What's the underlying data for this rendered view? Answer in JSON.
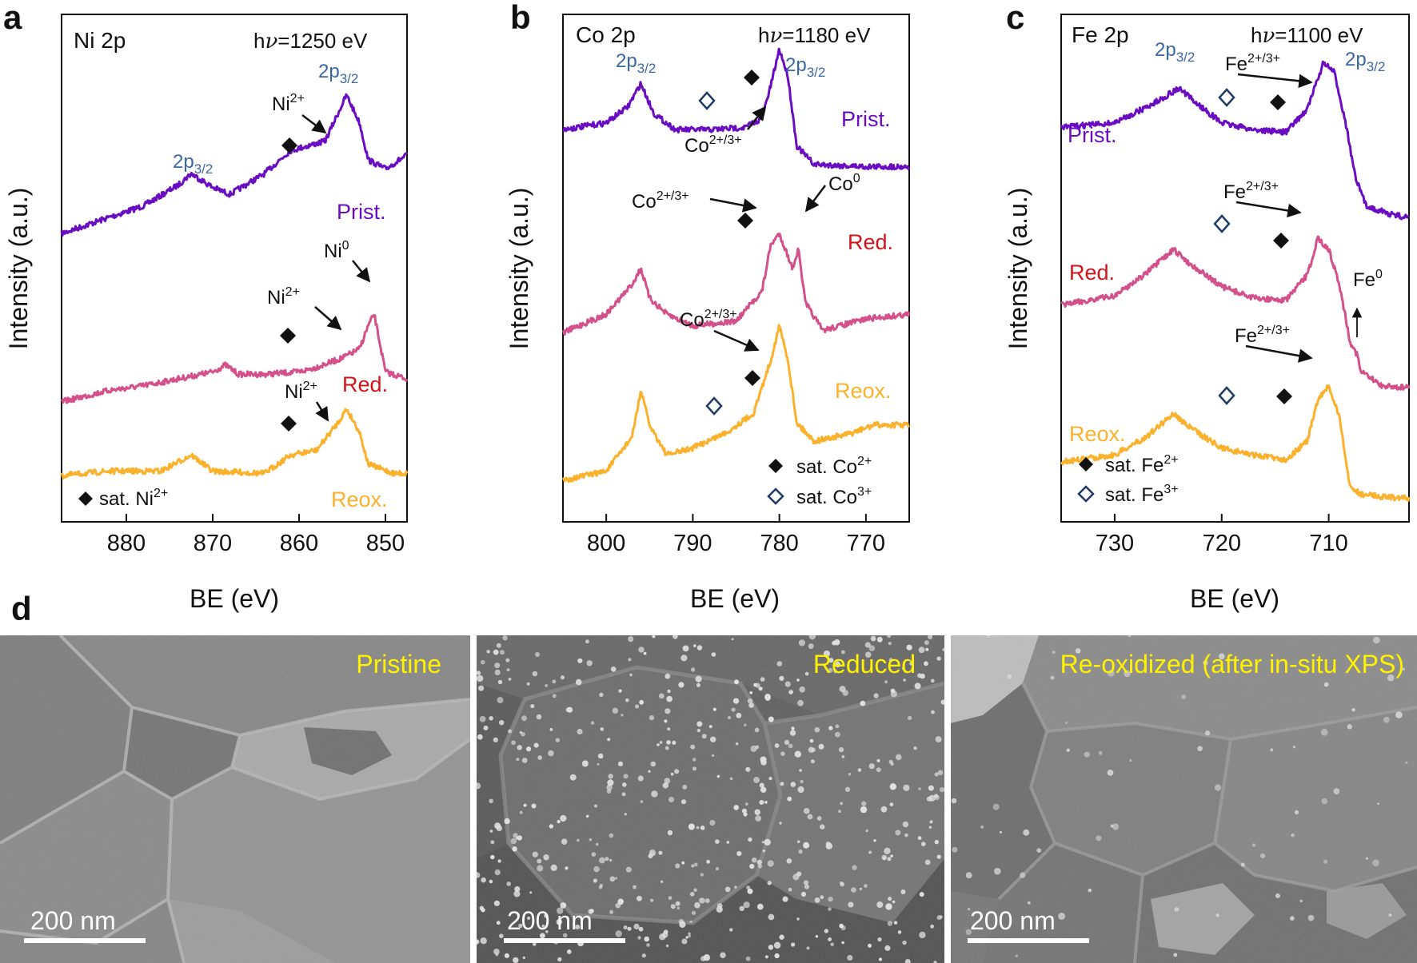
{
  "colors": {
    "pristine": "#6a0dc2",
    "reduced": "#d4508a",
    "reoxidized": "#fbb12c",
    "peak_label": "#3a67a6",
    "sat3_marker": "#1f3a64",
    "red_label": "#d0141a",
    "sem_label": "#fff200",
    "axis": "#111111"
  },
  "chart_data": [
    {
      "type": "line",
      "panel_letter": "a",
      "title": "Ni 2p",
      "photon_energy": "1250 eV",
      "xlabel": "BE (eV)",
      "ylabel": "Intensity (a.u.)",
      "xlim": [
        887.5,
        847.5
      ],
      "xticks": [
        880,
        870,
        860,
        850
      ],
      "peak_labels": [
        {
          "text": "2p",
          "sub": "3/2",
          "x": 854.5,
          "level": 0.87
        },
        {
          "text": "2p",
          "sub": "3/2",
          "x": 872.5,
          "level": 0.41
        }
      ],
      "series": [
        {
          "name": "Prist.",
          "color": "#6a0dc2",
          "points": [
            [
              887.5,
              0.1
            ],
            [
              882,
              0.17
            ],
            [
              878,
              0.22
            ],
            [
              874,
              0.31
            ],
            [
              872.5,
              0.36
            ],
            [
              870,
              0.3
            ],
            [
              868,
              0.27
            ],
            [
              864,
              0.36
            ],
            [
              861,
              0.46
            ],
            [
              859,
              0.48
            ],
            [
              857,
              0.5
            ],
            [
              855.5,
              0.62
            ],
            [
              854.5,
              0.7
            ],
            [
              853,
              0.58
            ],
            [
              852,
              0.42
            ],
            [
              850,
              0.38
            ],
            [
              847.5,
              0.44
            ]
          ]
        },
        {
          "name": "Red.",
          "color": "#d4508a",
          "points": [
            [
              887.5,
              -0.63
            ],
            [
              882,
              -0.58
            ],
            [
              878,
              -0.56
            ],
            [
              874,
              -0.53
            ],
            [
              870,
              -0.5
            ],
            [
              868.5,
              -0.47
            ],
            [
              867,
              -0.51
            ],
            [
              864,
              -0.51
            ],
            [
              860,
              -0.5
            ],
            [
              858,
              -0.48
            ],
            [
              855,
              -0.44
            ],
            [
              853,
              -0.4
            ],
            [
              852,
              -0.3
            ],
            [
              851.3,
              -0.25
            ],
            [
              850,
              -0.5
            ],
            [
              847.5,
              -0.53
            ]
          ]
        },
        {
          "name": "Reox.",
          "color": "#fbb12c",
          "points": [
            [
              887.5,
              -0.95
            ],
            [
              882,
              -0.93
            ],
            [
              876,
              -0.93
            ],
            [
              872.5,
              -0.86
            ],
            [
              870,
              -0.93
            ],
            [
              864,
              -0.94
            ],
            [
              861,
              -0.86
            ],
            [
              858,
              -0.84
            ],
            [
              855.5,
              -0.72
            ],
            [
              854.5,
              -0.66
            ],
            [
              853,
              -0.76
            ],
            [
              852,
              -0.9
            ],
            [
              849,
              -0.94
            ],
            [
              847.5,
              -0.94
            ]
          ]
        }
      ],
      "annotations": [
        {
          "text": "Ni",
          "sup": "2+"
        },
        {
          "text": "Ni",
          "sup": "0"
        },
        {
          "text": "Ni",
          "sup": "2+"
        },
        {
          "text": "Ni",
          "sup": "2+"
        }
      ],
      "legend": [
        {
          "marker": "filled-diamond",
          "text": "sat. Ni",
          "sup": "2+"
        }
      ]
    },
    {
      "type": "line",
      "panel_letter": "b",
      "title": "Co 2p",
      "photon_energy": "1180 eV",
      "xlabel": "BE (eV)",
      "ylabel": "Intensity (a.u.)",
      "xlim": [
        805,
        765
      ],
      "xticks": [
        800,
        790,
        780,
        770
      ],
      "peak_labels": [
        {
          "text": "2p",
          "sub": "3/2",
          "x": 796.5,
          "level": 0.88
        },
        {
          "text": "2p",
          "sub": "3/2",
          "x": 778,
          "level": 0.88
        }
      ],
      "series": [
        {
          "name": "Prist.",
          "color": "#6a0dc2",
          "points": [
            [
              805,
              0.55
            ],
            [
              800,
              0.58
            ],
            [
              797.5,
              0.65
            ],
            [
              796,
              0.75
            ],
            [
              794.5,
              0.62
            ],
            [
              792,
              0.55
            ],
            [
              788,
              0.55
            ],
            [
              784,
              0.56
            ],
            [
              782,
              0.6
            ],
            [
              781,
              0.74
            ],
            [
              780,
              0.9
            ],
            [
              779,
              0.78
            ],
            [
              778,
              0.48
            ],
            [
              776,
              0.4
            ],
            [
              770,
              0.39
            ],
            [
              765,
              0.39
            ]
          ]
        },
        {
          "name": "Red.",
          "color": "#d4508a",
          "points": [
            [
              805,
              -0.33
            ],
            [
              800,
              -0.25
            ],
            [
              797,
              -0.12
            ],
            [
              796,
              -0.05
            ],
            [
              795,
              -0.18
            ],
            [
              793,
              -0.25
            ],
            [
              790,
              -0.3
            ],
            [
              785,
              -0.28
            ],
            [
              782,
              -0.15
            ],
            [
              781,
              0.05
            ],
            [
              780,
              0.1
            ],
            [
              779,
              0.0
            ],
            [
              778.5,
              -0.05
            ],
            [
              777.8,
              0.03
            ],
            [
              777,
              -0.2
            ],
            [
              775,
              -0.32
            ],
            [
              770,
              -0.27
            ],
            [
              765,
              -0.25
            ]
          ]
        },
        {
          "name": "Reox.",
          "color": "#fbb12c",
          "points": [
            [
              805,
              -0.97
            ],
            [
              800,
              -0.93
            ],
            [
              797,
              -0.78
            ],
            [
              796,
              -0.58
            ],
            [
              795,
              -0.73
            ],
            [
              793,
              -0.86
            ],
            [
              790,
              -0.83
            ],
            [
              786,
              -0.76
            ],
            [
              783,
              -0.68
            ],
            [
              781,
              -0.45
            ],
            [
              780,
              -0.3
            ],
            [
              779,
              -0.45
            ],
            [
              778,
              -0.72
            ],
            [
              776,
              -0.8
            ],
            [
              772,
              -0.77
            ],
            [
              769,
              -0.73
            ],
            [
              765,
              -0.73
            ]
          ]
        }
      ],
      "annotations": [
        {
          "text": "Co",
          "sup": "2+/3+"
        },
        {
          "text": "Co",
          "sup": "2+/3+"
        },
        {
          "text": "Co",
          "sup": "0"
        },
        {
          "text": "Co",
          "sup": "2+/3+"
        }
      ],
      "legend": [
        {
          "marker": "filled-diamond",
          "text": "sat. Co",
          "sup": "2+"
        },
        {
          "marker": "open-diamond",
          "text": "sat. Co",
          "sup": "3+"
        }
      ]
    },
    {
      "type": "line",
      "panel_letter": "c",
      "title": "Fe 2p",
      "photon_energy": "1100 eV",
      "xlabel": "BE (eV)",
      "ylabel": "Intensity (a.u.)",
      "xlim": [
        735,
        702.5
      ],
      "xticks": [
        730,
        720,
        710
      ],
      "peak_labels": [
        {
          "text": "2p",
          "sub": "3/2",
          "x": 724,
          "level": 0.91
        },
        {
          "text": "2p",
          "sub": "3/2",
          "x": 707.5,
          "level": 0.91
        }
      ],
      "series": [
        {
          "name": "Prist.",
          "color": "#6a0dc2",
          "points": [
            [
              735,
              0.56
            ],
            [
              730,
              0.58
            ],
            [
              726.5,
              0.66
            ],
            [
              724,
              0.73
            ],
            [
              722.5,
              0.67
            ],
            [
              720,
              0.58
            ],
            [
              717,
              0.55
            ],
            [
              714,
              0.54
            ],
            [
              712,
              0.64
            ],
            [
              710.5,
              0.84
            ],
            [
              709.5,
              0.8
            ],
            [
              708.5,
              0.6
            ],
            [
              707.5,
              0.34
            ],
            [
              706.5,
              0.22
            ],
            [
              704,
              0.18
            ],
            [
              702.5,
              0.17
            ]
          ]
        },
        {
          "name": "Red.",
          "color": "#d4508a",
          "points": [
            [
              735,
              -0.21
            ],
            [
              730,
              -0.17
            ],
            [
              727,
              -0.07
            ],
            [
              724.5,
              0.03
            ],
            [
              723,
              -0.03
            ],
            [
              720,
              -0.13
            ],
            [
              717,
              -0.18
            ],
            [
              714,
              -0.19
            ],
            [
              712,
              -0.08
            ],
            [
              711,
              0.08
            ],
            [
              710,
              0.03
            ],
            [
              709,
              -0.12
            ],
            [
              708,
              -0.37
            ],
            [
              707.3,
              -0.43
            ],
            [
              707,
              -0.5
            ],
            [
              705,
              -0.56
            ],
            [
              702.5,
              -0.57
            ]
          ]
        },
        {
          "name": "Reox.",
          "color": "#fbb12c",
          "points": [
            [
              735,
              -0.89
            ],
            [
              730,
              -0.86
            ],
            [
              727,
              -0.78
            ],
            [
              724.5,
              -0.68
            ],
            [
              723,
              -0.74
            ],
            [
              720,
              -0.83
            ],
            [
              717,
              -0.86
            ],
            [
              714,
              -0.88
            ],
            [
              712,
              -0.8
            ],
            [
              711,
              -0.62
            ],
            [
              710,
              -0.56
            ],
            [
              709,
              -0.7
            ],
            [
              708,
              -1.0
            ],
            [
              707,
              -1.03
            ],
            [
              705,
              -1.04
            ],
            [
              702.5,
              -1.05
            ]
          ]
        }
      ],
      "annotations": [
        {
          "text": "Fe",
          "sup": "2+/3+"
        },
        {
          "text": "Fe",
          "sup": "2+/3+"
        },
        {
          "text": "Fe",
          "sup": "0"
        },
        {
          "text": "Fe",
          "sup": "2+/3+"
        }
      ],
      "legend": [
        {
          "marker": "filled-diamond",
          "text": "sat. Fe",
          "sup": "2+"
        },
        {
          "marker": "open-diamond",
          "text": "sat. Fe",
          "sup": "3+"
        }
      ]
    }
  ],
  "sem": {
    "panel_letter": "d",
    "scale_bar": "200 nm",
    "images": [
      {
        "label": "Pristine"
      },
      {
        "label": "Reduced"
      },
      {
        "label": "Re-oxidized (after in-situ XPS)"
      }
    ]
  }
}
